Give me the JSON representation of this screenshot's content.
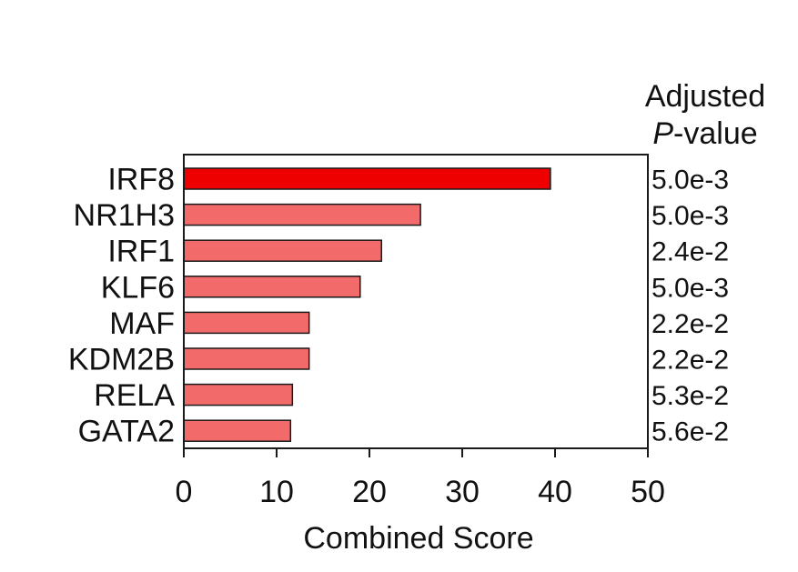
{
  "chart_data": {
    "type": "bar",
    "orientation": "horizontal",
    "categories": [
      "IRF8",
      "NR1H3",
      "IRF1",
      "KLF6",
      "MAF",
      "KDM2B",
      "RELA",
      "GATA2"
    ],
    "values": [
      39.5,
      25.5,
      21.3,
      19.0,
      13.5,
      13.5,
      11.7,
      11.5
    ],
    "pvalue_header": [
      "Adjusted",
      "P",
      "-value"
    ],
    "pvalues": [
      "5.0e-3",
      "5.0e-3",
      "2.4e-2",
      "5.0e-3",
      "2.2e-2",
      "2.2e-2",
      "5.3e-2",
      "5.6e-2"
    ],
    "xlabel": "Combined Score",
    "ylabel": "",
    "xlim": [
      0,
      50
    ],
    "xticks": [
      0,
      10,
      20,
      30,
      40,
      50
    ],
    "grid": false,
    "colors": {
      "top_bar": "#ee0000",
      "bars": "#f26a6a",
      "stroke": "#1a1a1a"
    }
  }
}
